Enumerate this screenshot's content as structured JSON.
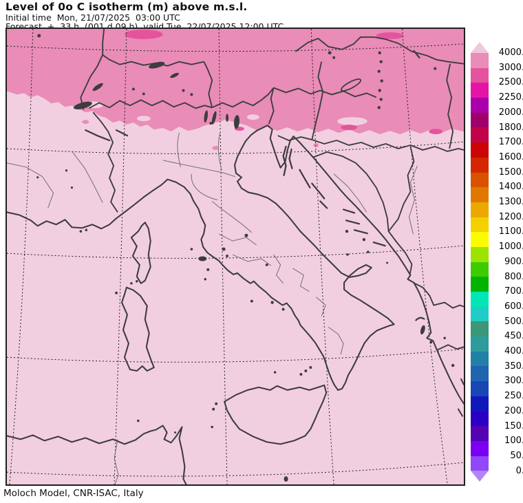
{
  "header": {
    "title": "Level of 0o C isotherm (m) above m.s.l.",
    "initial_time_line": "Initial time  Mon, 21/07/2025  03:00 UTC",
    "forecast_line": "Forecast  +  33 h  (001 d 09 h)  valid Tue, 22/07/2025 12:00 UTC"
  },
  "footer": {
    "credit": "Moloch Model, CNR-ISAC, Italy"
  },
  "map": {
    "base_color": "#f2cfe0",
    "band_color": "#e98cb7",
    "band_accent_color": "#e4549e",
    "coast_color": "#3d3d3d",
    "thin_border_color": "#6e6e6e",
    "grid_color": "#1a1a1a",
    "frame_color": "#1f1f1f"
  },
  "colorbar": {
    "units": "m",
    "top_arrow_color": "#edc9dc",
    "bottom_arrow_color": "#b286f4",
    "labels": [
      "4000.",
      "3000.",
      "2500.",
      "2250.",
      "2000.",
      "1800.",
      "1700.",
      "1600.",
      "1500.",
      "1400.",
      "1300.",
      "1200.",
      "1100.",
      "1000.",
      "900.",
      "800.",
      "700.",
      "600.",
      "500.",
      "450.",
      "400.",
      "350.",
      "300.",
      "250.",
      "200.",
      "150.",
      "100.",
      "50.",
      "0."
    ],
    "segment_colors": [
      "#e98cb7",
      "#e4549e",
      "#e614a6",
      "#aa00aa",
      "#a0006a",
      "#c00448",
      "#cc0404",
      "#d42600",
      "#d85200",
      "#e07800",
      "#eca800",
      "#f4d000",
      "#fcfc00",
      "#9ce400",
      "#3ecc00",
      "#00b400",
      "#00e6b4",
      "#20ccc8",
      "#3c9678",
      "#2d9c9c",
      "#2080a8",
      "#2064b0",
      "#1a46b4",
      "#1018bc",
      "#2a00c4",
      "#5502b4",
      "#7a00f4",
      "#9148f8"
    ]
  }
}
